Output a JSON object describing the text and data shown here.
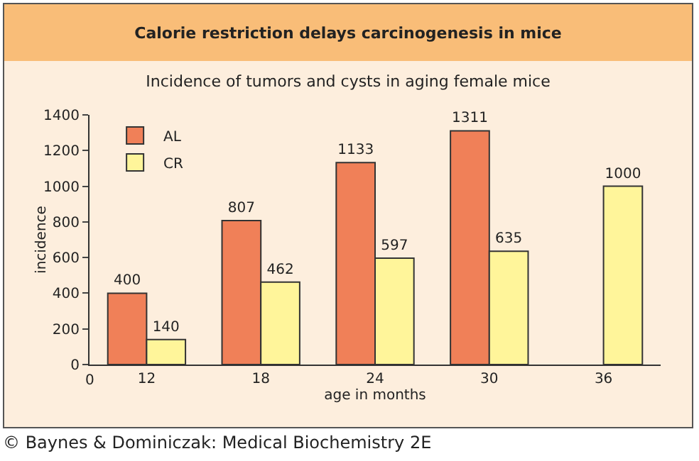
{
  "chart_data": {
    "type": "bar",
    "title": "Calorie restriction delays carcinogenesis in mice",
    "subtitle": "Incidence of tumors and cysts in aging female mice",
    "xlabel": "age in months",
    "ylabel": "incidence",
    "categories": [
      "12",
      "18",
      "24",
      "30",
      "36"
    ],
    "series": [
      {
        "name": "AL",
        "color": "#f08058",
        "values": [
          400,
          807,
          1133,
          1311,
          null
        ]
      },
      {
        "name": "CR",
        "color": "#fff59a",
        "values": [
          140,
          462,
          597,
          635,
          1000
        ]
      }
    ],
    "ylim": [
      0,
      1400
    ],
    "yticks": [
      0,
      200,
      400,
      600,
      800,
      1000,
      1200,
      1400
    ],
    "data_labels": true,
    "grid": false,
    "legend": "top left",
    "annotations": [
      "0",
      "© Baynes & Dominiczak: Medical Biochemistry 2E"
    ]
  }
}
